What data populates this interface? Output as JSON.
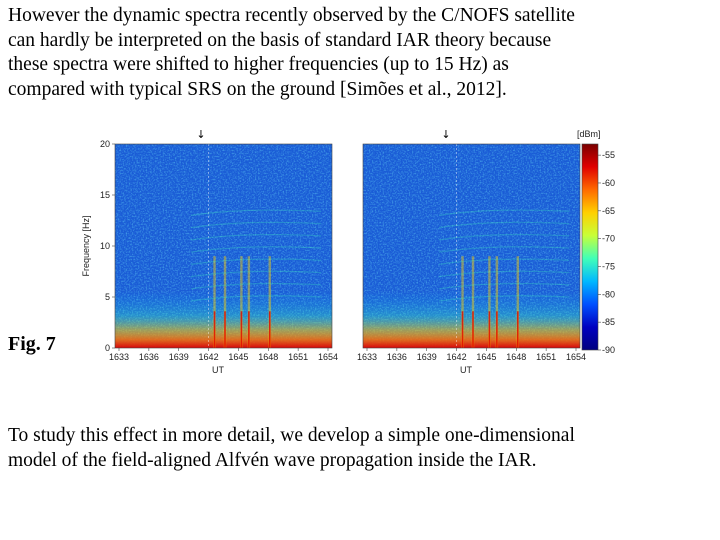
{
  "text": {
    "paragraph_1": "However the dynamic spectra recently observed by the C/NOFS satellite\ncan hardly be interpreted on the basis of standard IAR theory because\nthese spectra were shifted to higher frequencies (up to 15 Hz) as\ncompared with typical SRS on the ground [Simões  et al., 2012].",
    "figure_label": "Fig. 7",
    "paragraph_2": "To study this effect in more detail, we develop a simple one-dimensional\nmodel of the field-aligned Alfvén wave propagation inside the IAR."
  },
  "figure": {
    "panels": [
      {
        "xlabel": "UT",
        "ylabel": "Frequency [Hz]",
        "show_y_axis": true
      },
      {
        "xlabel": "UT",
        "ylabel": "",
        "show_y_axis": false
      }
    ],
    "marker_symbol": "↓",
    "colorbar": {
      "unit": "[dBm]",
      "ticks": [
        "-55",
        "-60",
        "-65",
        "-70",
        "-75",
        "-80",
        "-85",
        "-90"
      ],
      "colors": [
        "#7a0000",
        "#e00000",
        "#ff6a00",
        "#ffd000",
        "#c8ff38",
        "#40ffb8",
        "#00b8ff",
        "#0050ff",
        "#0000c0",
        "#000080"
      ]
    }
  },
  "chart_data": [
    {
      "type": "heatmap",
      "title": "",
      "xlabel": "UT",
      "ylabel": "Frequency [Hz]",
      "x_ticks": [
        "1633",
        "1636",
        "1639",
        "1642",
        "1645",
        "1648",
        "1651",
        "1654"
      ],
      "y_ticks": [
        0,
        5,
        10,
        15,
        20
      ],
      "xlim": [
        "1633",
        "1654"
      ],
      "ylim": [
        0,
        20
      ],
      "marker_x": "1642",
      "colorbar_range_dbm": [
        -90,
        -53
      ]
    },
    {
      "type": "heatmap",
      "title": "",
      "xlabel": "UT",
      "ylabel": "",
      "x_ticks": [
        "1633",
        "1636",
        "1639",
        "1642",
        "1645",
        "1648",
        "1651",
        "1654"
      ],
      "xlim": [
        "1633",
        "1654"
      ],
      "ylim": [
        0,
        20
      ],
      "marker_x": "1642",
      "colorbar_range_dbm": [
        -90,
        -53
      ]
    }
  ]
}
